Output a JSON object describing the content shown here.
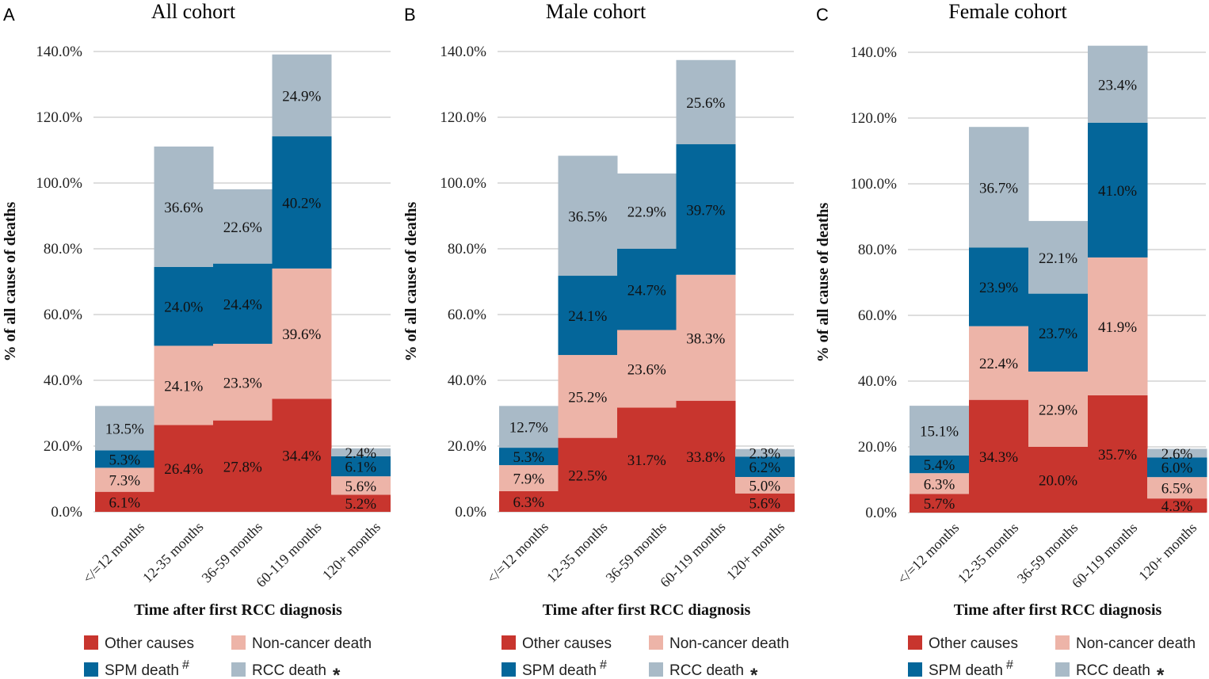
{
  "colors": {
    "other_causes": "#c8352e",
    "non_cancer": "#edb4a8",
    "spm": "#04669a",
    "rcc": "#a9bac7"
  },
  "legend": [
    {
      "key": "other_causes",
      "label": "Other causes",
      "marker": ""
    },
    {
      "key": "non_cancer",
      "label": "Non-cancer death",
      "marker": ""
    },
    {
      "key": "spm",
      "label": "SPM death",
      "marker": "#"
    },
    {
      "key": "rcc",
      "label": "RCC death",
      "marker": "*"
    }
  ],
  "chart_data": [
    {
      "type": "bar",
      "stacked": true,
      "panel": "A",
      "title": "All cohort",
      "xlabel": "Time after first RCC diagnosis",
      "ylabel": "% of all cause of deaths",
      "ylim": [
        0,
        140
      ],
      "yticks": [
        "0.0%",
        "20.0%",
        "40.0%",
        "60.0%",
        "80.0%",
        "100.0%",
        "120.0%",
        "140.0%"
      ],
      "categories": [
        "</=12 months",
        "12-35 months",
        "36-59 months",
        "60-119 months",
        "120+ months"
      ],
      "series": [
        {
          "name": "Other causes",
          "key": "other_causes",
          "values": [
            6.1,
            26.4,
            27.8,
            34.4,
            5.2
          ],
          "labels": [
            "6.1%",
            "26.4%",
            "27.8%",
            "34.4%",
            "5.2%"
          ]
        },
        {
          "name": "Non-cancer death",
          "key": "non_cancer",
          "values": [
            7.3,
            24.1,
            23.3,
            39.6,
            5.6
          ],
          "labels": [
            "7.3%",
            "24.1%",
            "23.3%",
            "39.6%",
            "5.6%"
          ]
        },
        {
          "name": "SPM death",
          "key": "spm",
          "values": [
            5.3,
            24.0,
            24.4,
            40.2,
            6.1
          ],
          "labels": [
            "5.3%",
            "24.0%",
            "24.4%",
            "40.2%",
            "6.1%"
          ]
        },
        {
          "name": "RCC death",
          "key": "rcc",
          "values": [
            13.5,
            36.6,
            22.6,
            24.9,
            2.4
          ],
          "labels": [
            "13.5%",
            "36.6%",
            "22.6%",
            "24.9%",
            "2.4%"
          ]
        }
      ]
    },
    {
      "type": "bar",
      "stacked": true,
      "panel": "B",
      "title": "Male cohort",
      "xlabel": "Time after first RCC diagnosis",
      "ylabel": "% of all cause of deaths",
      "ylim": [
        0,
        140
      ],
      "yticks": [
        "0.0%",
        "20.0%",
        "40.0%",
        "60.0%",
        "80.0%",
        "100.0%",
        "120.0%",
        "140.0%"
      ],
      "categories": [
        "</=12 months",
        "12-35 months",
        "36-59 months",
        "60-119 months",
        "120+ months"
      ],
      "series": [
        {
          "name": "Other causes",
          "key": "other_causes",
          "values": [
            6.3,
            22.5,
            31.7,
            33.8,
            5.6
          ],
          "labels": [
            "6.3%",
            "22.5%",
            "31.7%",
            "33.8%",
            "5.6%"
          ]
        },
        {
          "name": "Non-cancer death",
          "key": "non_cancer",
          "values": [
            7.9,
            25.2,
            23.6,
            38.3,
            5.0
          ],
          "labels": [
            "7.9%",
            "25.2%",
            "23.6%",
            "38.3%",
            "5.0%"
          ]
        },
        {
          "name": "SPM death",
          "key": "spm",
          "values": [
            5.3,
            24.1,
            24.7,
            39.7,
            6.2
          ],
          "labels": [
            "5.3%",
            "24.1%",
            "24.7%",
            "39.7%",
            "6.2%"
          ]
        },
        {
          "name": "RCC death",
          "key": "rcc",
          "values": [
            12.7,
            36.5,
            22.9,
            25.6,
            2.3
          ],
          "labels": [
            "12.7%",
            "36.5%",
            "22.9%",
            "25.6%",
            "2.3%"
          ]
        }
      ]
    },
    {
      "type": "bar",
      "stacked": true,
      "panel": "C",
      "title": "Female cohort",
      "xlabel": "Time after first RCC diagnosis",
      "ylabel": "% of all cause of deaths",
      "ylim": [
        0,
        140
      ],
      "yticks": [
        "0.0%",
        "20.0%",
        "40.0%",
        "60.0%",
        "80.0%",
        "100.0%",
        "120.0%",
        "140.0%"
      ],
      "categories": [
        "</=12 months",
        "12-35 months",
        "36-59 months",
        "60-119 months",
        "120+ months"
      ],
      "series": [
        {
          "name": "Other causes",
          "key": "other_causes",
          "values": [
            5.7,
            34.3,
            20.0,
            35.7,
            4.3
          ],
          "labels": [
            "5.7%",
            "34.3%",
            "20.0%",
            "35.7%",
            "4.3%"
          ]
        },
        {
          "name": "Non-cancer death",
          "key": "non_cancer",
          "values": [
            6.3,
            22.4,
            22.9,
            41.9,
            6.5
          ],
          "labels": [
            "6.3%",
            "22.4%",
            "22.9%",
            "41.9%",
            "6.5%"
          ]
        },
        {
          "name": "SPM death",
          "key": "spm",
          "values": [
            5.4,
            23.9,
            23.7,
            41.0,
            6.0
          ],
          "labels": [
            "5.4%",
            "23.9%",
            "23.7%",
            "41.0%",
            "6.0%"
          ]
        },
        {
          "name": "RCC death",
          "key": "rcc",
          "values": [
            15.1,
            36.7,
            22.1,
            23.4,
            2.6
          ],
          "labels": [
            "15.1%",
            "36.7%",
            "22.1%",
            "23.4%",
            "2.6%"
          ]
        }
      ]
    }
  ]
}
